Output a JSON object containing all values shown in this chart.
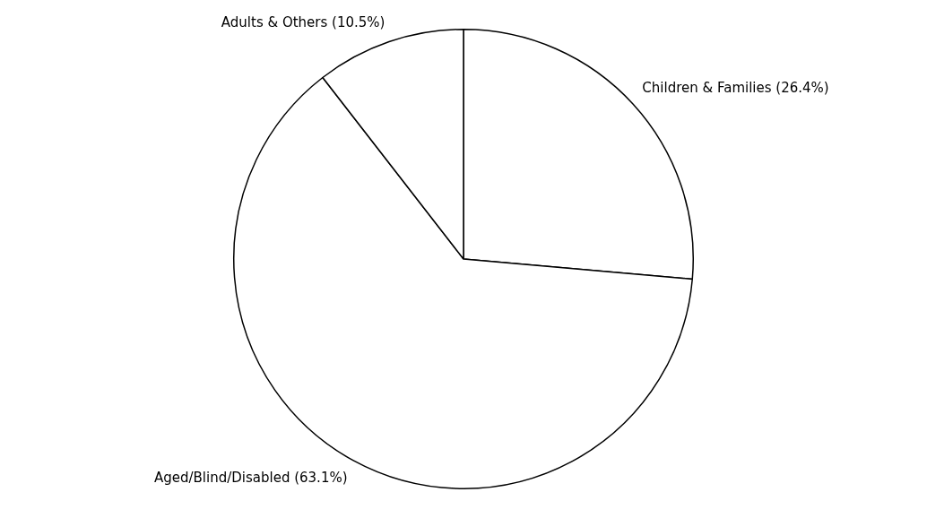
{
  "chart_data": {
    "type": "pie",
    "categories": [
      "Children & Families",
      "Aged/Blind/Disabled",
      "Adults & Others"
    ],
    "values": [
      26.4,
      63.1,
      10.5
    ],
    "value_labels": [
      "(26.4%)",
      "(63.1%)",
      "(10.5%)"
    ],
    "colors": [
      "#ffffff",
      "#ffffff",
      "#ffffff"
    ],
    "legend": false
  }
}
